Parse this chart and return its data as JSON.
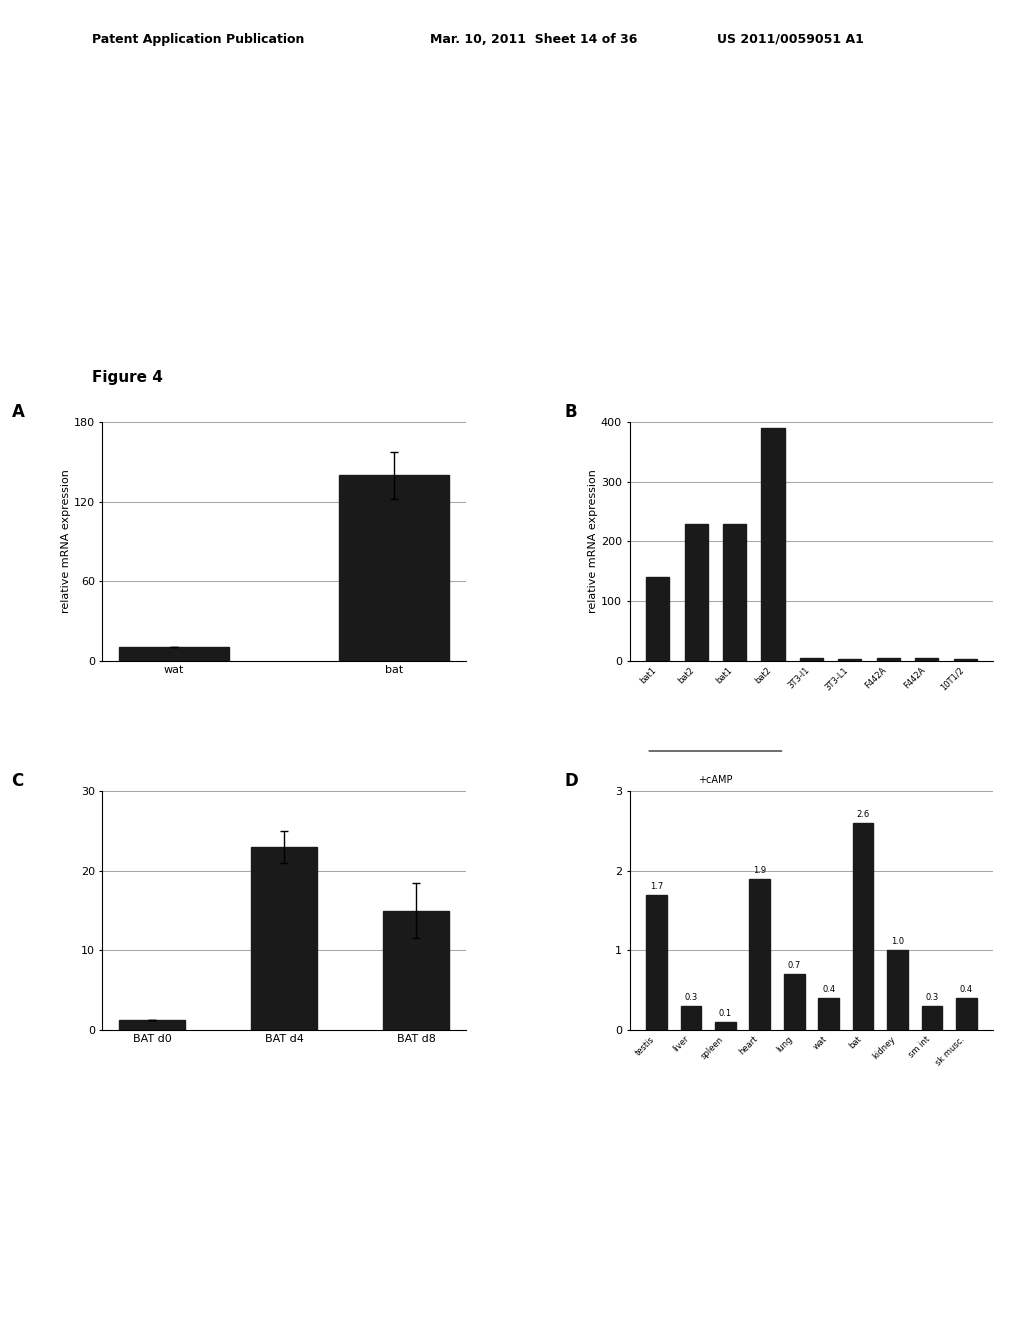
{
  "header_left": "Patent Application Publication",
  "header_mid": "Mar. 10, 2011  Sheet 14 of 36",
  "header_right": "US 2011/0059051 A1",
  "figure_label": "Figure 4",
  "panel_A": {
    "label": "A",
    "categories": [
      "wat",
      "bat"
    ],
    "values": [
      10,
      140
    ],
    "error_bars": [
      0,
      18
    ],
    "ylabel": "relative mRNA expression",
    "ylim": [
      0,
      180
    ],
    "yticks": [
      0,
      60,
      120,
      180
    ]
  },
  "panel_B": {
    "label": "B",
    "categories": [
      "bat1",
      "bat2",
      "bat1",
      "bat2",
      "3T3-l1",
      "3T3-L1",
      "F442A",
      "F442A",
      "10T1/2"
    ],
    "values": [
      140,
      230,
      230,
      390,
      5,
      2,
      5,
      5,
      3
    ],
    "ylabel": "relative mRNA expression",
    "ylim": [
      0,
      400
    ],
    "yticks": [
      0,
      100,
      200,
      300,
      400
    ],
    "group_label": "+cAMP",
    "group_indices": [
      0,
      1,
      2,
      3
    ]
  },
  "panel_C": {
    "label": "C",
    "categories": [
      "BAT d0",
      "BAT d4",
      "BAT d8"
    ],
    "values": [
      1.2,
      23,
      15
    ],
    "error_bars": [
      0,
      2,
      3.5
    ],
    "ylim": [
      0,
      30
    ],
    "yticks": [
      0,
      10,
      20,
      30
    ]
  },
  "panel_D": {
    "label": "D",
    "categories": [
      "testis",
      "liver",
      "spleen",
      "heart",
      "lung",
      "wat",
      "bat",
      "kidney",
      "sm int",
      "sk musc."
    ],
    "values": [
      1.7,
      0.3,
      0.1,
      1.9,
      0.7,
      0.4,
      2.6,
      1.0,
      0.3,
      0.4
    ],
    "annotations": [
      "1.7",
      "0.3",
      "0.1",
      "1.9",
      "0.7",
      "0.4",
      "2.6",
      "1.0",
      "0.3",
      "0.4"
    ],
    "ylim": [
      0,
      3
    ],
    "yticks": [
      0,
      1,
      2,
      3
    ]
  },
  "bar_color": "#1a1a1a",
  "bg_color": "#ffffff",
  "font_size": 8
}
